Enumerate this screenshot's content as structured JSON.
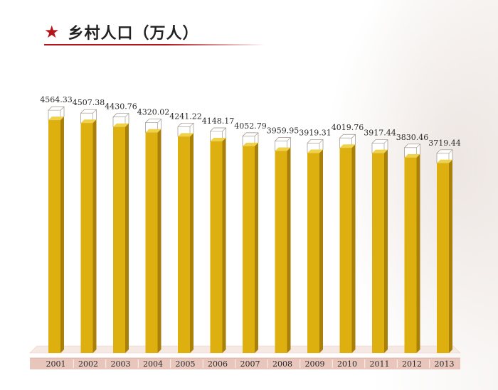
{
  "header": {
    "title": "乡村人口（万人）",
    "star_icon": "★",
    "icon_name": "star-icon",
    "accent_color": "#b3151b"
  },
  "colors": {
    "bar_front": "#deb00f",
    "bar_side": "#a9800a",
    "bar_top": "#f0d14a",
    "bar_cap": "#ffffff",
    "base_band": "#e8c6bb",
    "base_floor": "#f6e9e4"
  },
  "chart_data": {
    "type": "bar",
    "title": "乡村人口（万人）",
    "categories": [
      "2001",
      "2002",
      "2003",
      "2004",
      "2005",
      "2006",
      "2007",
      "2008",
      "2009",
      "2010",
      "2011",
      "2012",
      "2013"
    ],
    "values": [
      4564.33,
      4507.38,
      4430.76,
      4320.02,
      4241.22,
      4148.17,
      4052.79,
      3959.95,
      3919.31,
      4019.76,
      3917.44,
      3830.46,
      3719.44
    ],
    "value_labels": [
      "4564.33",
      "4507.38",
      "4430.76",
      "4320.02",
      "4241.22",
      "4148.17",
      "4052.79",
      "3959.95",
      "3919.31",
      "4019.76",
      "3917.44",
      "3830.46",
      "3719.44"
    ],
    "xlabel": "",
    "ylabel": "",
    "ylim": [
      0,
      4900
    ],
    "grid": false,
    "legend": "none"
  }
}
